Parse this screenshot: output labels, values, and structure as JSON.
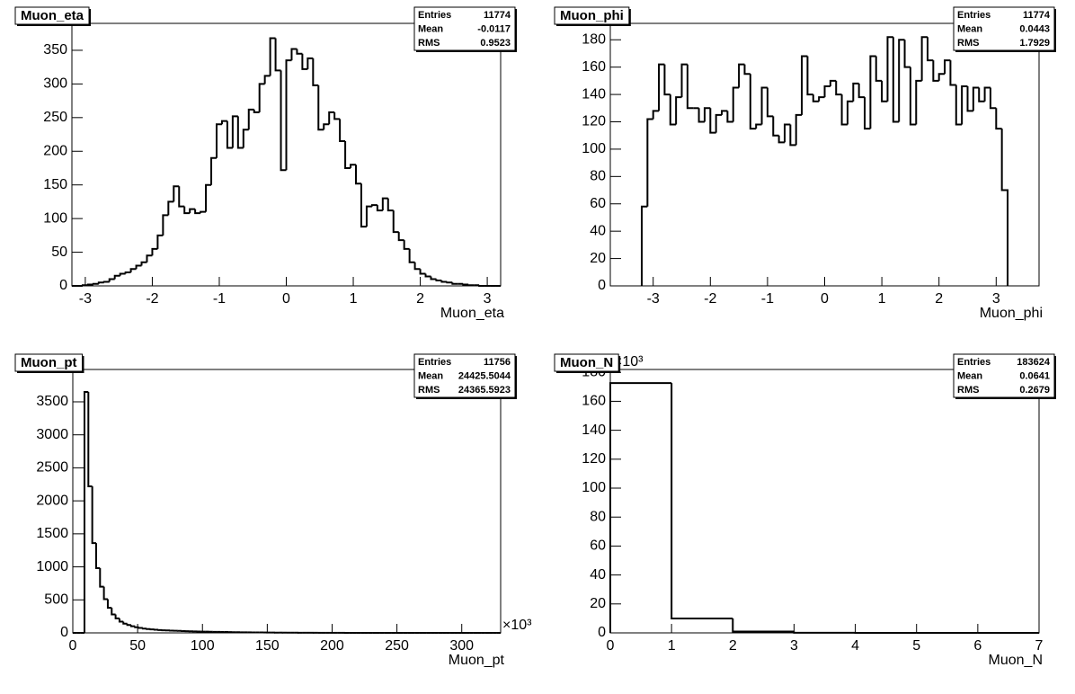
{
  "chart_data": [
    {
      "type": "histogram",
      "title": "Muon_eta",
      "xlabel": "Muon_eta",
      "stats": [
        {
          "label": "Entries",
          "value": 11774
        },
        {
          "label": "Mean",
          "value": -0.0117
        },
        {
          "label": "RMS",
          "value": 0.9523
        }
      ],
      "xlim": [
        -3.2,
        3.2
      ],
      "ylim": [
        0,
        390
      ],
      "xticks": [
        -3,
        -2,
        -1,
        0,
        1,
        2,
        3
      ],
      "yticks": [
        0,
        50,
        100,
        150,
        200,
        250,
        300,
        350
      ],
      "color": "#000000",
      "bins": [
        -3.2,
        -3.12,
        -3.04,
        -2.96,
        -2.88,
        -2.8,
        -2.72,
        -2.64,
        -2.56,
        -2.48,
        -2.4,
        -2.32,
        -2.24,
        -2.16,
        -2.08,
        -2,
        -1.92,
        -1.84,
        -1.76,
        -1.68,
        -1.6,
        -1.52,
        -1.44,
        -1.36,
        -1.28,
        -1.2,
        -1.12,
        -1.04,
        -0.96,
        -0.88,
        -0.8,
        -0.72,
        -0.64,
        -0.56,
        -0.48,
        -0.4,
        -0.32,
        -0.24,
        -0.16,
        -0.08,
        0,
        0.08,
        0.16,
        0.24,
        0.32,
        0.4,
        0.48,
        0.56,
        0.64,
        0.72,
        0.8,
        0.88,
        0.96,
        1.04,
        1.12,
        1.2,
        1.28,
        1.36,
        1.44,
        1.52,
        1.6,
        1.68,
        1.76,
        1.84,
        1.92,
        2,
        2.08,
        2.16,
        2.24,
        2.32,
        2.4,
        2.48,
        2.56,
        2.64,
        2.72,
        2.8,
        2.88,
        2.96,
        3.04,
        3.12,
        3.2
      ],
      "values": [
        0,
        0,
        1,
        2,
        3,
        5,
        6,
        10,
        15,
        18,
        20,
        25,
        30,
        35,
        45,
        55,
        75,
        105,
        125,
        148,
        118,
        108,
        114,
        108,
        110,
        150,
        190,
        240,
        245,
        205,
        252,
        205,
        232,
        262,
        258,
        300,
        312,
        368,
        320,
        172,
        335,
        352,
        345,
        322,
        338,
        298,
        232,
        240,
        258,
        248,
        215,
        175,
        180,
        152,
        88,
        118,
        120,
        112,
        130,
        112,
        80,
        68,
        55,
        35,
        25,
        18,
        14,
        10,
        8,
        6,
        5,
        3,
        3,
        2,
        1,
        1,
        0,
        0,
        0,
        0
      ]
    },
    {
      "type": "histogram",
      "title": "Muon_phi",
      "xlabel": "Muon_phi",
      "stats": [
        {
          "label": "Entries",
          "value": 11774
        },
        {
          "label": "Mean",
          "value": 0.0443
        },
        {
          "label": "RMS",
          "value": 1.7929
        }
      ],
      "xlim": [
        -3.75,
        3.75
      ],
      "ylim": [
        0,
        192
      ],
      "xticks": [
        -3,
        -2,
        -1,
        0,
        1,
        2,
        3
      ],
      "yticks": [
        0,
        20,
        40,
        60,
        80,
        100,
        120,
        140,
        160,
        180
      ],
      "color": "#000000",
      "bins": [
        -3.2,
        -3.1,
        -3,
        -2.9,
        -2.8,
        -2.7,
        -2.6,
        -2.5,
        -2.4,
        -2.3,
        -2.2,
        -2.1,
        -2,
        -1.9,
        -1.8,
        -1.7,
        -1.6,
        -1.5,
        -1.4,
        -1.3,
        -1.2,
        -1.1,
        -1,
        -0.9,
        -0.8,
        -0.7,
        -0.6,
        -0.5,
        -0.4,
        -0.3,
        -0.2,
        -0.1,
        0,
        0.1,
        0.2,
        0.3,
        0.4,
        0.5,
        0.6,
        0.7,
        0.8,
        0.9,
        1,
        1.1,
        1.2,
        1.3,
        1.4,
        1.5,
        1.6,
        1.7,
        1.8,
        1.9,
        2,
        2.1,
        2.2,
        2.3,
        2.4,
        2.5,
        2.6,
        2.7,
        2.8,
        2.9,
        3,
        3.1,
        3.2
      ],
      "values": [
        58,
        122,
        128,
        162,
        140,
        118,
        138,
        162,
        130,
        130,
        120,
        130,
        112,
        125,
        128,
        120,
        145,
        162,
        155,
        115,
        118,
        145,
        124,
        110,
        105,
        118,
        103,
        125,
        168,
        140,
        135,
        138,
        146,
        150,
        140,
        118,
        135,
        148,
        138,
        115,
        168,
        150,
        135,
        182,
        120,
        180,
        160,
        118,
        150,
        182,
        165,
        150,
        155,
        165,
        147,
        118,
        146,
        128,
        145,
        135,
        145,
        130,
        115,
        70
      ]
    },
    {
      "type": "histogram",
      "title": "Muon_pt",
      "xlabel": "Muon_pt",
      "x_exponent": "×10³",
      "stats": [
        {
          "label": "Entries",
          "value": 11756
        },
        {
          "label": "Mean",
          "value": 24425.5044
        },
        {
          "label": "RMS",
          "value": 24365.5923
        }
      ],
      "xlim": [
        0,
        330
      ],
      "ylim": [
        0,
        3990
      ],
      "xticks": [
        0,
        50,
        100,
        150,
        200,
        250,
        300
      ],
      "yticks": [
        0,
        500,
        1000,
        1500,
        2000,
        2500,
        3000,
        3500
      ],
      "color": "#000000",
      "bins": [
        0,
        3,
        6,
        9,
        12,
        15,
        18,
        21,
        24,
        27,
        30,
        33,
        36,
        39,
        42,
        45,
        48,
        51,
        54,
        57,
        60,
        63,
        66,
        69,
        72,
        75,
        78,
        81,
        84,
        87,
        90,
        93,
        96,
        99,
        102,
        105,
        108,
        111,
        114,
        117,
        120,
        123,
        126,
        129,
        132,
        135,
        138,
        141,
        144,
        147,
        150,
        153,
        156,
        159,
        162,
        165,
        168,
        171,
        174,
        177,
        180,
        183,
        186,
        189,
        192,
        195,
        198,
        201,
        204,
        207,
        210,
        213,
        216,
        219,
        222,
        225,
        228,
        231,
        234,
        237,
        240,
        243,
        246,
        249,
        252,
        255,
        258,
        261,
        264,
        267,
        270,
        273,
        276,
        279,
        282,
        285,
        288,
        291,
        294,
        297,
        300,
        303,
        306,
        309,
        312,
        315,
        318,
        321,
        324,
        327,
        330
      ],
      "values": [
        0,
        0,
        0,
        3650,
        2220,
        1360,
        980,
        700,
        510,
        380,
        280,
        220,
        170,
        140,
        120,
        100,
        85,
        75,
        65,
        58,
        52,
        47,
        43,
        40,
        37,
        34,
        32,
        30,
        28,
        26,
        24,
        22,
        20,
        19,
        18,
        17,
        16,
        15,
        14,
        13,
        12,
        11,
        10,
        9,
        8,
        8,
        7,
        7,
        6,
        6,
        5,
        5,
        4,
        4,
        3,
        3,
        3,
        3,
        2,
        2,
        2,
        2,
        1,
        1,
        1,
        1,
        1,
        1,
        1,
        1,
        0,
        0,
        0,
        0,
        0,
        0,
        0,
        0,
        0,
        0,
        0,
        0,
        0,
        0,
        0,
        0,
        0,
        0,
        0,
        0,
        0,
        0,
        0,
        0,
        0,
        0,
        0,
        0,
        0,
        0,
        0,
        0,
        0,
        0,
        0,
        0,
        0,
        0,
        0,
        0
      ]
    },
    {
      "type": "histogram",
      "title": "Muon_N",
      "xlabel": "Muon_N",
      "y_exponent": "×10³",
      "stats": [
        {
          "label": "Entries",
          "value": 183624
        },
        {
          "label": "Mean",
          "value": 0.0641
        },
        {
          "label": "RMS",
          "value": 0.2679
        }
      ],
      "xlim": [
        0,
        7
      ],
      "ylim": [
        0,
        182
      ],
      "xticks": [
        0,
        1,
        2,
        3,
        4,
        5,
        6,
        7
      ],
      "yticks": [
        0,
        20,
        40,
        60,
        80,
        100,
        120,
        140,
        160,
        180
      ],
      "color": "#000000",
      "bins": [
        0,
        1,
        2,
        3,
        4,
        5,
        6,
        7
      ],
      "values": [
        172.6,
        9.9,
        0.9,
        0.1,
        0,
        0,
        0
      ]
    }
  ]
}
